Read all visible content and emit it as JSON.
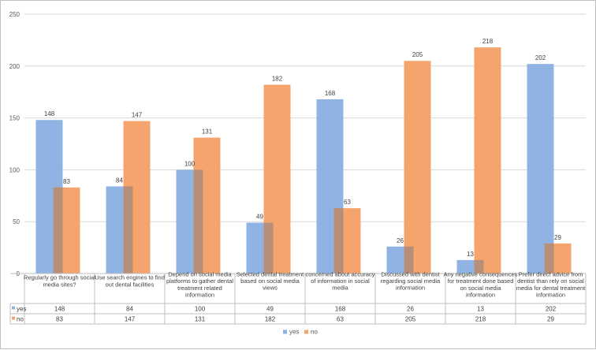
{
  "chart_data": {
    "type": "bar",
    "title": "",
    "xlabel": "",
    "ylabel": "",
    "ylim": [
      0,
      250
    ],
    "yticks": [
      0,
      50,
      100,
      150,
      200,
      250
    ],
    "grid": true,
    "legend": "bottom-center",
    "categories": [
      [
        "Regularly go through social",
        "media sites?"
      ],
      [
        "Use search engines to find",
        "out dental facilities"
      ],
      [
        "Depend on social media",
        "platforms to gather dental",
        "treatment related",
        "information"
      ],
      [
        "Selected dental treatment",
        "based on social media",
        "views"
      ],
      [
        "concerned about accuracy",
        "of information in social",
        "media"
      ],
      [
        "Discussed with dentist",
        "regarding social media",
        "information"
      ],
      [
        "Any negative consequences",
        "for treatment done based",
        "on social media",
        "information"
      ],
      [
        "Prefer direct advice from",
        "dentist than rely on social",
        "media for dental treatment",
        "information"
      ]
    ],
    "series": [
      {
        "name": "yes",
        "color": "#8fb4e3",
        "values": [
          148,
          84,
          100,
          49,
          168,
          26,
          13,
          202
        ]
      },
      {
        "name": "no",
        "color": "#f4a46c",
        "values": [
          83,
          147,
          131,
          182,
          63,
          205,
          218,
          29
        ]
      }
    ]
  }
}
